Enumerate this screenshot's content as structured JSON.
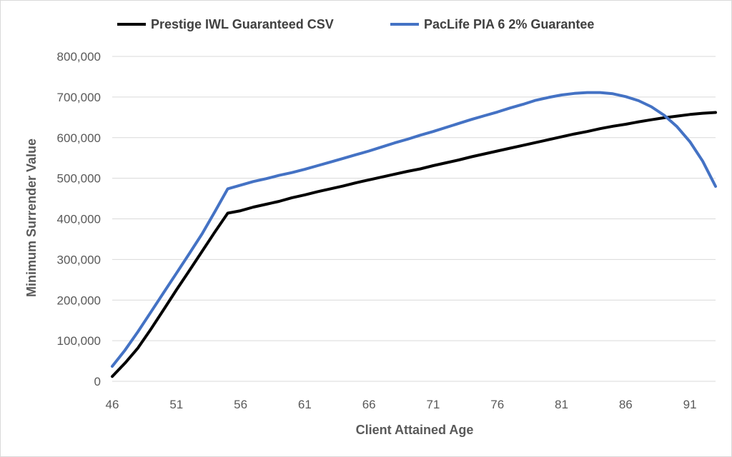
{
  "chart_data": {
    "type": "line",
    "title": "",
    "xlabel": "Client Attained Age",
    "ylabel": "Minimum Surrender Value",
    "xlim": [
      46,
      93
    ],
    "ylim": [
      0,
      800000
    ],
    "x_ticks": [
      46,
      51,
      56,
      61,
      66,
      71,
      76,
      81,
      86,
      91
    ],
    "x_tick_labels": [
      "46",
      "51",
      "56",
      "61",
      "66",
      "71",
      "76",
      "81",
      "86",
      "91"
    ],
    "y_ticks": [
      0,
      100000,
      200000,
      300000,
      400000,
      500000,
      600000,
      700000,
      800000
    ],
    "y_tick_labels": [
      "0",
      "100,000",
      "200,000",
      "300,000",
      "400,000",
      "500,000",
      "600,000",
      "700,000",
      "800,000"
    ],
    "grid": "horizontal",
    "legend_position": "top",
    "x": [
      46,
      47,
      48,
      49,
      50,
      51,
      52,
      53,
      54,
      55,
      56,
      57,
      58,
      59,
      60,
      61,
      62,
      63,
      64,
      65,
      66,
      67,
      68,
      69,
      70,
      71,
      72,
      73,
      74,
      75,
      76,
      77,
      78,
      79,
      80,
      81,
      82,
      83,
      84,
      85,
      86,
      87,
      88,
      89,
      90,
      91,
      92,
      93
    ],
    "series": [
      {
        "name": "Prestige IWL Guaranteed CSV",
        "color": "#000000",
        "values": [
          12000,
          45000,
          82000,
          128000,
          176000,
          225000,
          272000,
          320000,
          368000,
          414000,
          420000,
          429000,
          436000,
          443000,
          452000,
          459000,
          467000,
          474000,
          481000,
          489000,
          496000,
          503000,
          510000,
          517000,
          523000,
          531000,
          538000,
          545000,
          553000,
          560000,
          567000,
          574000,
          581000,
          588000,
          595000,
          602000,
          609000,
          615000,
          622000,
          628000,
          633000,
          639000,
          644000,
          649000,
          653000,
          657000,
          660000,
          662000
        ]
      },
      {
        "name": "PacLife PIA 6 2% Guarantee",
        "color": "#4472c4",
        "values": [
          37000,
          77000,
          122000,
          170000,
          218000,
          266000,
          314000,
          363000,
          418000,
          474000,
          483000,
          492000,
          499000,
          507000,
          514000,
          522000,
          531000,
          540000,
          549000,
          558000,
          567000,
          577000,
          587000,
          596000,
          606000,
          615000,
          625000,
          635000,
          645000,
          654000,
          663000,
          673000,
          682000,
          692000,
          699000,
          705000,
          709000,
          711000,
          711000,
          708000,
          701000,
          691000,
          676000,
          655000,
          627000,
          590000,
          542000,
          480000
        ]
      }
    ]
  }
}
